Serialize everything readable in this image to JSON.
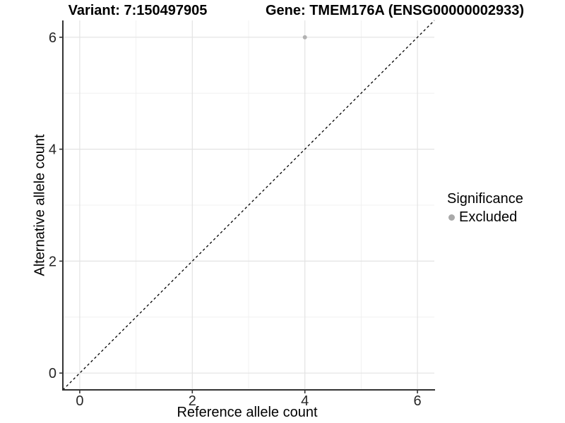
{
  "chart_data": {
    "type": "scatter",
    "titles": {
      "left": "Variant: 7:150497905",
      "right": "Gene: TMEM176A (ENSG00000002933)"
    },
    "xlabel": "Reference allele count",
    "ylabel": "Alternative allele count",
    "xlim": [
      -0.3,
      6.3
    ],
    "ylim": [
      -0.3,
      6.3
    ],
    "x_major_ticks": [
      0,
      2,
      4,
      6
    ],
    "y_major_ticks": [
      0,
      2,
      4,
      6
    ],
    "x_minor_ticks": [
      1,
      3,
      5
    ],
    "y_minor_ticks": [
      1,
      3,
      5
    ],
    "grid": "on",
    "identity_line": {
      "style": "dashed",
      "from": [
        -0.3,
        -0.3
      ],
      "to": [
        6.3,
        6.3
      ],
      "color": "#000000"
    },
    "series": [
      {
        "name": "Excluded",
        "color": "#b2b2b2",
        "point_radius": 3,
        "points": [
          [
            4,
            6
          ]
        ]
      }
    ],
    "legend": {
      "title": "Significance",
      "position": "right",
      "entries": [
        {
          "label": "Excluded",
          "color": "#a9a9a9"
        }
      ]
    }
  },
  "colors": {
    "background": "#ffffff",
    "grid_major": "#e3e3e3",
    "grid_minor": "#f0f0f0",
    "axis_line": "#333333",
    "tick_mark": "#333333",
    "tick_text": "#262626",
    "title_text": "#000000"
  }
}
